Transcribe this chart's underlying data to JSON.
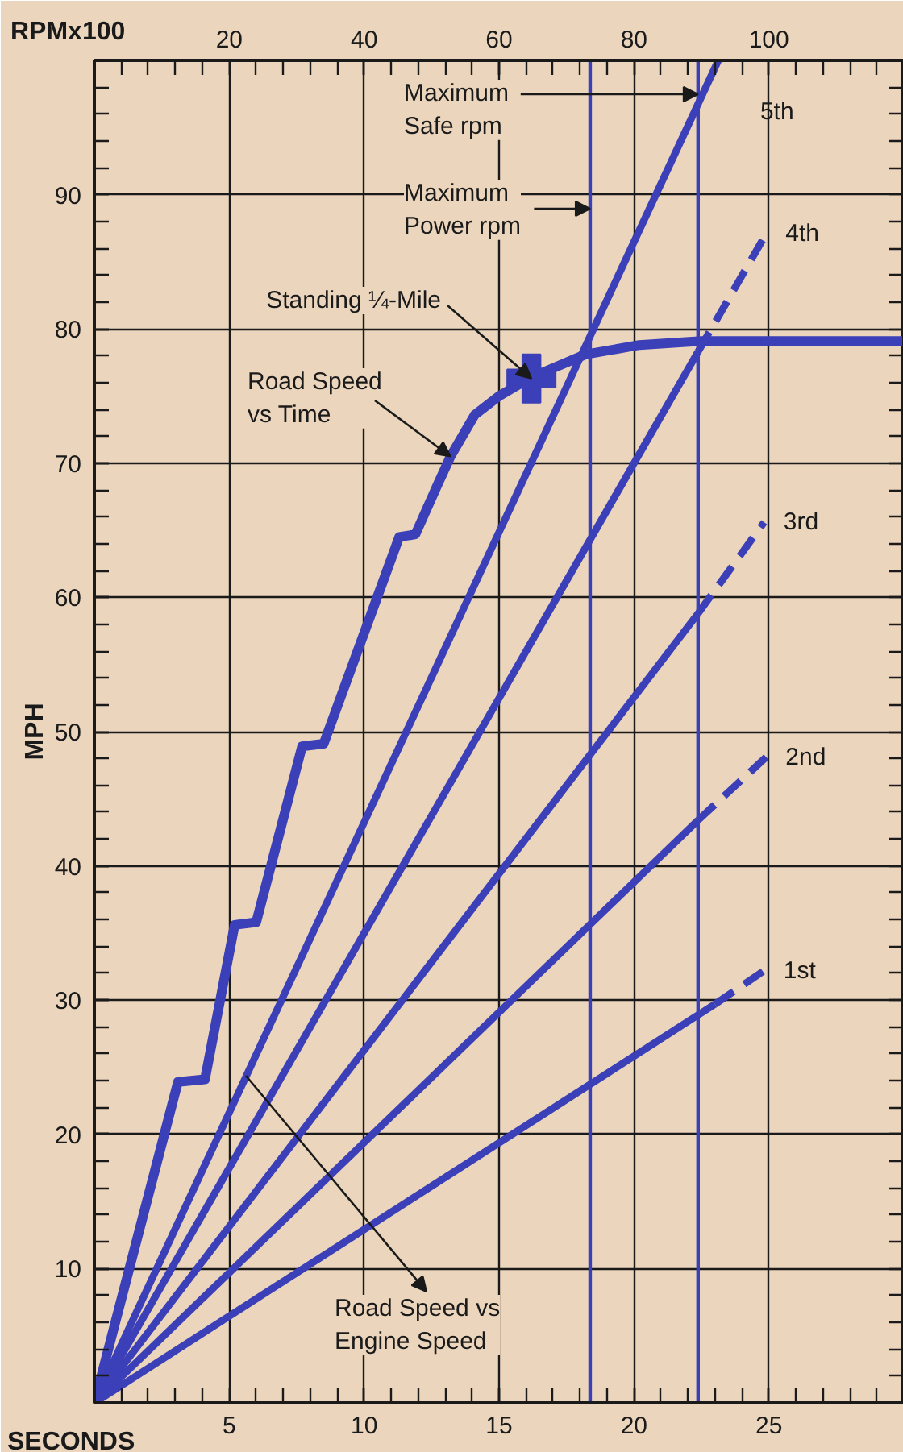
{
  "chart_data": {
    "type": "line",
    "xlabel": "SECONDS",
    "x2label": "RPMx100",
    "ylabel": "MPH",
    "xlim": [
      0,
      30
    ],
    "xticks": [
      5,
      10,
      15,
      20,
      25
    ],
    "x2lim": [
      0,
      120
    ],
    "x2ticks": [
      20,
      40,
      60,
      80,
      100
    ],
    "ylim": [
      0,
      100
    ],
    "yticks": [
      10,
      20,
      30,
      40,
      50,
      60,
      70,
      80,
      90
    ],
    "grid": true,
    "line_style": "solid",
    "marker": "none",
    "series": [
      {
        "color": "#3b3fb8",
        "x": [
          0,
          3.1,
          4.1,
          5.2,
          6.0,
          7.7,
          8.5,
          11.3,
          11.9,
          12.7,
          13.2,
          14.1,
          15.0,
          16.2,
          18.2,
          20.2,
          22.5,
          30
        ],
        "values": [
          0,
          23.9,
          24.1,
          35.6,
          35.8,
          48.9,
          49.1,
          64.5,
          64.7,
          68.3,
          70.5,
          73.6,
          75.0,
          76.4,
          78.1,
          78.8,
          79.1,
          79.1
        ]
      },
      {
        "type": "scatter",
        "marker": "cross",
        "color": "#3b3fb8",
        "x": [
          16.2
        ],
        "values": [
          76.3
        ]
      },
      {
        "name": "5th",
        "axis": "x2",
        "color": "#3b3fb8",
        "x": [
          0,
          92.5
        ],
        "values": [
          0,
          100
        ]
      },
      {
        "axis": "x2",
        "color": "#3b3fb8",
        "x": [
          0,
          89.5
        ],
        "values": [
          0,
          78.3
        ]
      },
      {
        "name": "4th",
        "axis": "x2",
        "line_style": "dashed",
        "color": "#3b3fb8",
        "x": [
          89.5,
          99.6
        ],
        "values": [
          78.3,
          87.1
        ]
      },
      {
        "axis": "x2",
        "color": "#3b3fb8",
        "x": [
          0,
          89.5
        ],
        "values": [
          0,
          58.8
        ]
      },
      {
        "name": "3rd",
        "axis": "x2",
        "line_style": "dashed",
        "color": "#3b3fb8",
        "x": [
          89.5,
          99.3
        ],
        "values": [
          58.8,
          65.6
        ]
      },
      {
        "axis": "x2",
        "color": "#3b3fb8",
        "x": [
          0,
          89.5
        ],
        "values": [
          0,
          43.4
        ]
      },
      {
        "name": "2nd",
        "axis": "x2",
        "line_style": "dashed",
        "color": "#3b3fb8",
        "x": [
          89.5,
          99.6
        ],
        "values": [
          43.4,
          48.1
        ]
      },
      {
        "axis": "x2",
        "color": "#3b3fb8",
        "x": [
          0,
          92
        ],
        "values": [
          0,
          29.7
        ]
      },
      {
        "name": "1st",
        "axis": "x2",
        "line_style": "dashed",
        "color": "#3b3fb8",
        "x": [
          92,
          99.3
        ],
        "values": [
          29.7,
          32.2
        ]
      }
    ],
    "ref_lines": [
      {
        "axis": "x2",
        "value": 89.5,
        "label": "Maximum\nSafe rpm",
        "color": "#3b3fb8"
      },
      {
        "axis": "x2",
        "value": 73.5,
        "label": "Maximum\nPower rpm",
        "color": "#3b3fb8"
      }
    ],
    "annotations": [
      {
        "text": "Standing ¼-Mile",
        "x": 16.2,
        "y": 76.3
      },
      {
        "text": "Road Speed\nvs Time",
        "x": 13.2,
        "y": 70.5
      },
      "Road Speed vs\nEngine Speed"
    ]
  }
}
